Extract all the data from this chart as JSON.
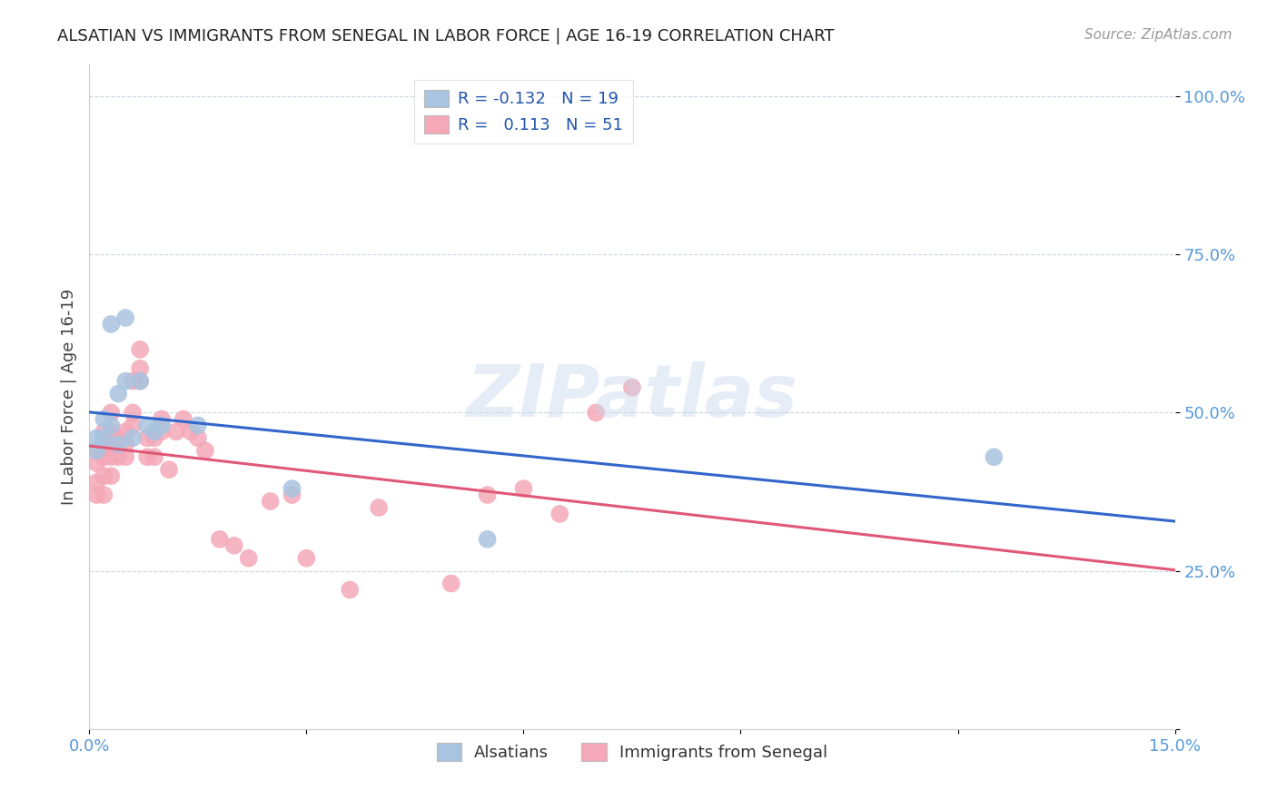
{
  "title": "ALSATIAN VS IMMIGRANTS FROM SENEGAL IN LABOR FORCE | AGE 16-19 CORRELATION CHART",
  "source": "Source: ZipAtlas.com",
  "ylabel": "In Labor Force | Age 16-19",
  "xlim": [
    0.0,
    0.15
  ],
  "ylim": [
    0.0,
    1.05
  ],
  "blue_R": "-0.132",
  "blue_N": "19",
  "pink_R": "0.113",
  "pink_N": "51",
  "legend_label_blue": "Alsatians",
  "legend_label_pink": "Immigrants from Senegal",
  "blue_color": "#a8c4e0",
  "pink_color": "#f4a8b8",
  "blue_line_color": "#3366cc",
  "pink_line_color": "#e05878",
  "watermark": "ZIPatlas",
  "blue_x": [
    0.001,
    0.001,
    0.002,
    0.002,
    0.003,
    0.003,
    0.004,
    0.004,
    0.005,
    0.005,
    0.006,
    0.007,
    0.008,
    0.009,
    0.01,
    0.015,
    0.028,
    0.055,
    0.125
  ],
  "blue_y": [
    0.44,
    0.46,
    0.46,
    0.49,
    0.48,
    0.64,
    0.45,
    0.53,
    0.65,
    0.55,
    0.46,
    0.55,
    0.48,
    0.47,
    0.48,
    0.48,
    0.38,
    0.3,
    0.43
  ],
  "pink_x": [
    0.001,
    0.001,
    0.001,
    0.001,
    0.002,
    0.002,
    0.002,
    0.002,
    0.002,
    0.003,
    0.003,
    0.003,
    0.003,
    0.003,
    0.004,
    0.004,
    0.005,
    0.005,
    0.005,
    0.006,
    0.006,
    0.006,
    0.007,
    0.007,
    0.007,
    0.008,
    0.008,
    0.009,
    0.009,
    0.01,
    0.01,
    0.011,
    0.012,
    0.013,
    0.014,
    0.015,
    0.016,
    0.018,
    0.02,
    0.022,
    0.025,
    0.028,
    0.03,
    0.036,
    0.04,
    0.05,
    0.055,
    0.06,
    0.065,
    0.07,
    0.075
  ],
  "pink_y": [
    0.37,
    0.39,
    0.42,
    0.44,
    0.37,
    0.4,
    0.43,
    0.45,
    0.47,
    0.4,
    0.43,
    0.45,
    0.47,
    0.5,
    0.43,
    0.46,
    0.43,
    0.45,
    0.47,
    0.48,
    0.5,
    0.55,
    0.55,
    0.57,
    0.6,
    0.43,
    0.46,
    0.43,
    0.46,
    0.47,
    0.49,
    0.41,
    0.47,
    0.49,
    0.47,
    0.46,
    0.44,
    0.3,
    0.29,
    0.27,
    0.36,
    0.37,
    0.27,
    0.22,
    0.35,
    0.23,
    0.37,
    0.38,
    0.34,
    0.5,
    0.54
  ]
}
